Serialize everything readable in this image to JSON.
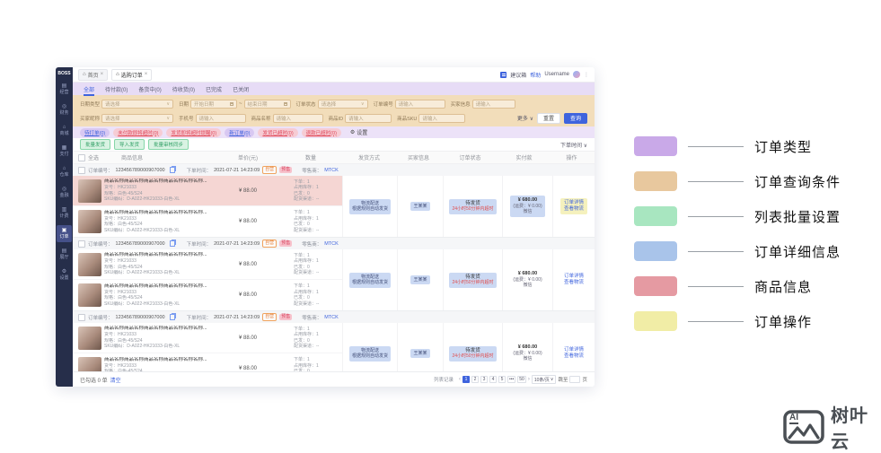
{
  "window": {
    "topbar": {
      "tabs": [
        {
          "label": "首页",
          "close": "×"
        },
        {
          "label": "选购订单",
          "close": "×"
        }
      ],
      "suggest": "建议箱",
      "help": "帮助",
      "username": "Username"
    },
    "sidebar": {
      "logo": "BOSS",
      "items": [
        {
          "id": "chart",
          "label": "经营"
        },
        {
          "id": "finance",
          "label": "财务"
        },
        {
          "id": "mall",
          "label": "商城"
        },
        {
          "id": "pay",
          "label": "支付"
        },
        {
          "id": "warehouse",
          "label": "仓库"
        },
        {
          "id": "member",
          "label": "金融"
        },
        {
          "id": "billing",
          "label": "计费"
        },
        {
          "id": "order",
          "label": "订单",
          "active": true
        },
        {
          "id": "shop",
          "label": "展厅"
        },
        {
          "id": "settings",
          "label": "设置"
        }
      ]
    },
    "order_tabs": {
      "items": [
        "全部",
        "待付款(0)",
        "备货中(0)",
        "待收货(0)",
        "已完成",
        "已关闭"
      ],
      "active_index": 0
    },
    "query": {
      "fields": [
        {
          "label": "日期类型",
          "placeholder": "请选择",
          "type": "select"
        },
        {
          "label": "日期",
          "start": "开始日期",
          "separator": "~",
          "end": "结束日期",
          "type": "daterange"
        },
        {
          "label": "订单状态",
          "placeholder": "请选择",
          "type": "select"
        },
        {
          "label": "订单编号",
          "placeholder": "请输入",
          "type": "input"
        },
        {
          "label": "买家信息",
          "placeholder": "请输入",
          "type": "input"
        },
        {
          "label": "买家昵称",
          "placeholder": "请选择",
          "type": "select"
        },
        {
          "label": "手机号",
          "placeholder": "请输入",
          "type": "input"
        },
        {
          "label": "商品名称",
          "placeholder": "请输入",
          "type": "input"
        },
        {
          "label": "商品ID",
          "placeholder": "请输入",
          "type": "input"
        },
        {
          "label": "商品SKU",
          "placeholder": "请输入",
          "type": "input"
        }
      ],
      "more": "更多 ∨",
      "reset": "重置",
      "search": "查询"
    },
    "pills": {
      "items": [
        {
          "label": "待打单(0)",
          "tone": "purple"
        },
        {
          "label": "未付款即将超时(0)",
          "tone": "pink"
        },
        {
          "label": "发货即将超时提醒(0)",
          "tone": "pink"
        },
        {
          "label": "新订单(0)",
          "tone": "purple"
        },
        {
          "label": "发货已超时(0)",
          "tone": "pink"
        },
        {
          "label": "退款已超时(0)",
          "tone": "pink"
        }
      ],
      "settings": "设置"
    },
    "batch": {
      "buttons": [
        "批量发货",
        "导入发货",
        "批量审核同步"
      ],
      "sort": "下单时间 ∨"
    },
    "table": {
      "select": "全选",
      "product": "商品信息",
      "price": "单价(元)",
      "qty": "数量",
      "ship": "发货方式",
      "buyer": "买家信息",
      "status": "订单状态",
      "paid": "实付款",
      "ops": "操作"
    },
    "orders": [
      {
        "no_label": "订单编号：",
        "no": "123456789000907000",
        "time_label": "下单时间：",
        "time": "2021-07-21 14:23:09",
        "tags": [
          "自营",
          "预售"
        ],
        "retailer_label": "零售商：",
        "retailer": "MTCK",
        "ship": [
          "物流配送",
          "根据规则自动发货"
        ],
        "buyer": "王某某",
        "status": "待发货",
        "status_warn": "24小时50分钟内超时",
        "paid": "¥ 680.00",
        "paid_fee": "(运费：¥ 0.00)",
        "paid_way": "微信",
        "ops": [
          "订单详情",
          "查看物流"
        ],
        "products": [
          {
            "name": "商品名称商品名称商品名称商品名称名称名称...",
            "art": "货号：HK21033",
            "spec": "规格：白色-45/S24",
            "sku": "SKU编码：D-A022-HK21033-白色-XL",
            "price": "¥ 88.00",
            "qty": [
              "下单：1",
              "占用库存：1",
              "已发：0",
              "配货渠道：--"
            ]
          },
          {
            "name": "商品名称商品名称商品名称商品名称名称名称...",
            "art": "货号：HK21033",
            "spec": "规格：白色-45/S24",
            "sku": "SKU编码：D-A022-HK21033-白色-XL",
            "price": "¥ 88.00",
            "qty": [
              "下单：1",
              "占用库存：1",
              "已发：0",
              "配货渠道：--"
            ]
          }
        ]
      },
      {
        "no_label": "订单编号：",
        "no": "123456789000907000",
        "time_label": "下单时间：",
        "time": "2021-07-21 14:23:09",
        "tags": [
          "自营",
          "预售"
        ],
        "retailer_label": "零售商：",
        "retailer": "MTCK",
        "ship": [
          "物流配送",
          "根据规则自动发货"
        ],
        "buyer": "王某某",
        "status": "待发货",
        "status_warn": "24小时50分钟内超时",
        "paid": "¥ 680.00",
        "paid_fee": "(运费：¥ 0.00)",
        "paid_way": "微信",
        "ops": [
          "订单详情",
          "查看物流"
        ],
        "products": [
          {
            "name": "商品名称商品名称商品名称商品名称名称名称...",
            "art": "货号：HK21033",
            "spec": "规格：白色-45/S24",
            "sku": "SKU编码：D-A022-HK21033-白色-XL",
            "price": "¥ 88.00",
            "qty": [
              "下单：1",
              "占用库存：1",
              "已发：0",
              "配货渠道：--"
            ]
          },
          {
            "name": "商品名称商品名称商品名称商品名称名称名称...",
            "art": "货号：HK21033",
            "spec": "规格：白色-45/S24",
            "sku": "SKU编码：D-A022-HK21033-白色-XL",
            "price": "¥ 88.00",
            "qty": [
              "下单：1",
              "占用库存：1",
              "已发：0",
              "配货渠道：--"
            ]
          }
        ]
      },
      {
        "no_label": "订单编号：",
        "no": "123456789000907000",
        "time_label": "下单时间：",
        "time": "2021-07-21 14:23:09",
        "tags": [
          "自营",
          "预售"
        ],
        "retailer_label": "零售商：",
        "retailer": "MTCK",
        "ship": [
          "物流配送",
          "根据规则自动发货"
        ],
        "buyer": "王某某",
        "status": "待发货",
        "status_warn": "24小时50分钟内超时",
        "paid": "¥ 680.00",
        "paid_fee": "(运费：¥ 0.00)",
        "paid_way": "微信",
        "ops": [
          "订单详情",
          "查看物流"
        ],
        "products": [
          {
            "name": "商品名称商品名称商品名称商品名称名称名称...",
            "art": "货号：HK21033",
            "spec": "规格：白色-45/S24",
            "sku": "SKU编码：D-A022-HK21033-白色-XL",
            "price": "¥ 88.00",
            "qty": [
              "下单：1",
              "占用库存：1",
              "已发：0",
              "配货渠道：--"
            ]
          },
          {
            "name": "商品名称商品名称商品名称商品名称名称名称...",
            "art": "货号：HK21033",
            "spec": "规格：白色-45/S24",
            "sku": "SKU编码：D-A022-HK21033-白色-XL",
            "price": "¥ 88.00",
            "qty": [
              "下单：1",
              "占用库存：1",
              "已发：0",
              "配货渠道：--"
            ]
          }
        ]
      }
    ],
    "footer": {
      "selected": "已勾选 0 单",
      "clear": "清空",
      "total": "列表记录",
      "prev": "‹",
      "pages": [
        "1",
        "2",
        "3",
        "4",
        "5",
        "•••",
        "50"
      ],
      "next": "›",
      "page_size": "10条/页",
      "jump_prefix": "跳至",
      "jump_suffix": "页"
    }
  },
  "legend": {
    "items": [
      {
        "color": "#c9a9e8",
        "label": "订单类型"
      },
      {
        "color": "#e8c89e",
        "label": "订单查询条件"
      },
      {
        "color": "#a8e6c0",
        "label": "列表批量设置"
      },
      {
        "color": "#a9c4ea",
        "label": "订单详细信息"
      },
      {
        "color": "#e59aa2",
        "label": "商品信息"
      },
      {
        "color": "#f1eda6",
        "label": "订单操作"
      }
    ]
  },
  "brand": {
    "ai": "AI",
    "name": "树叶云"
  }
}
